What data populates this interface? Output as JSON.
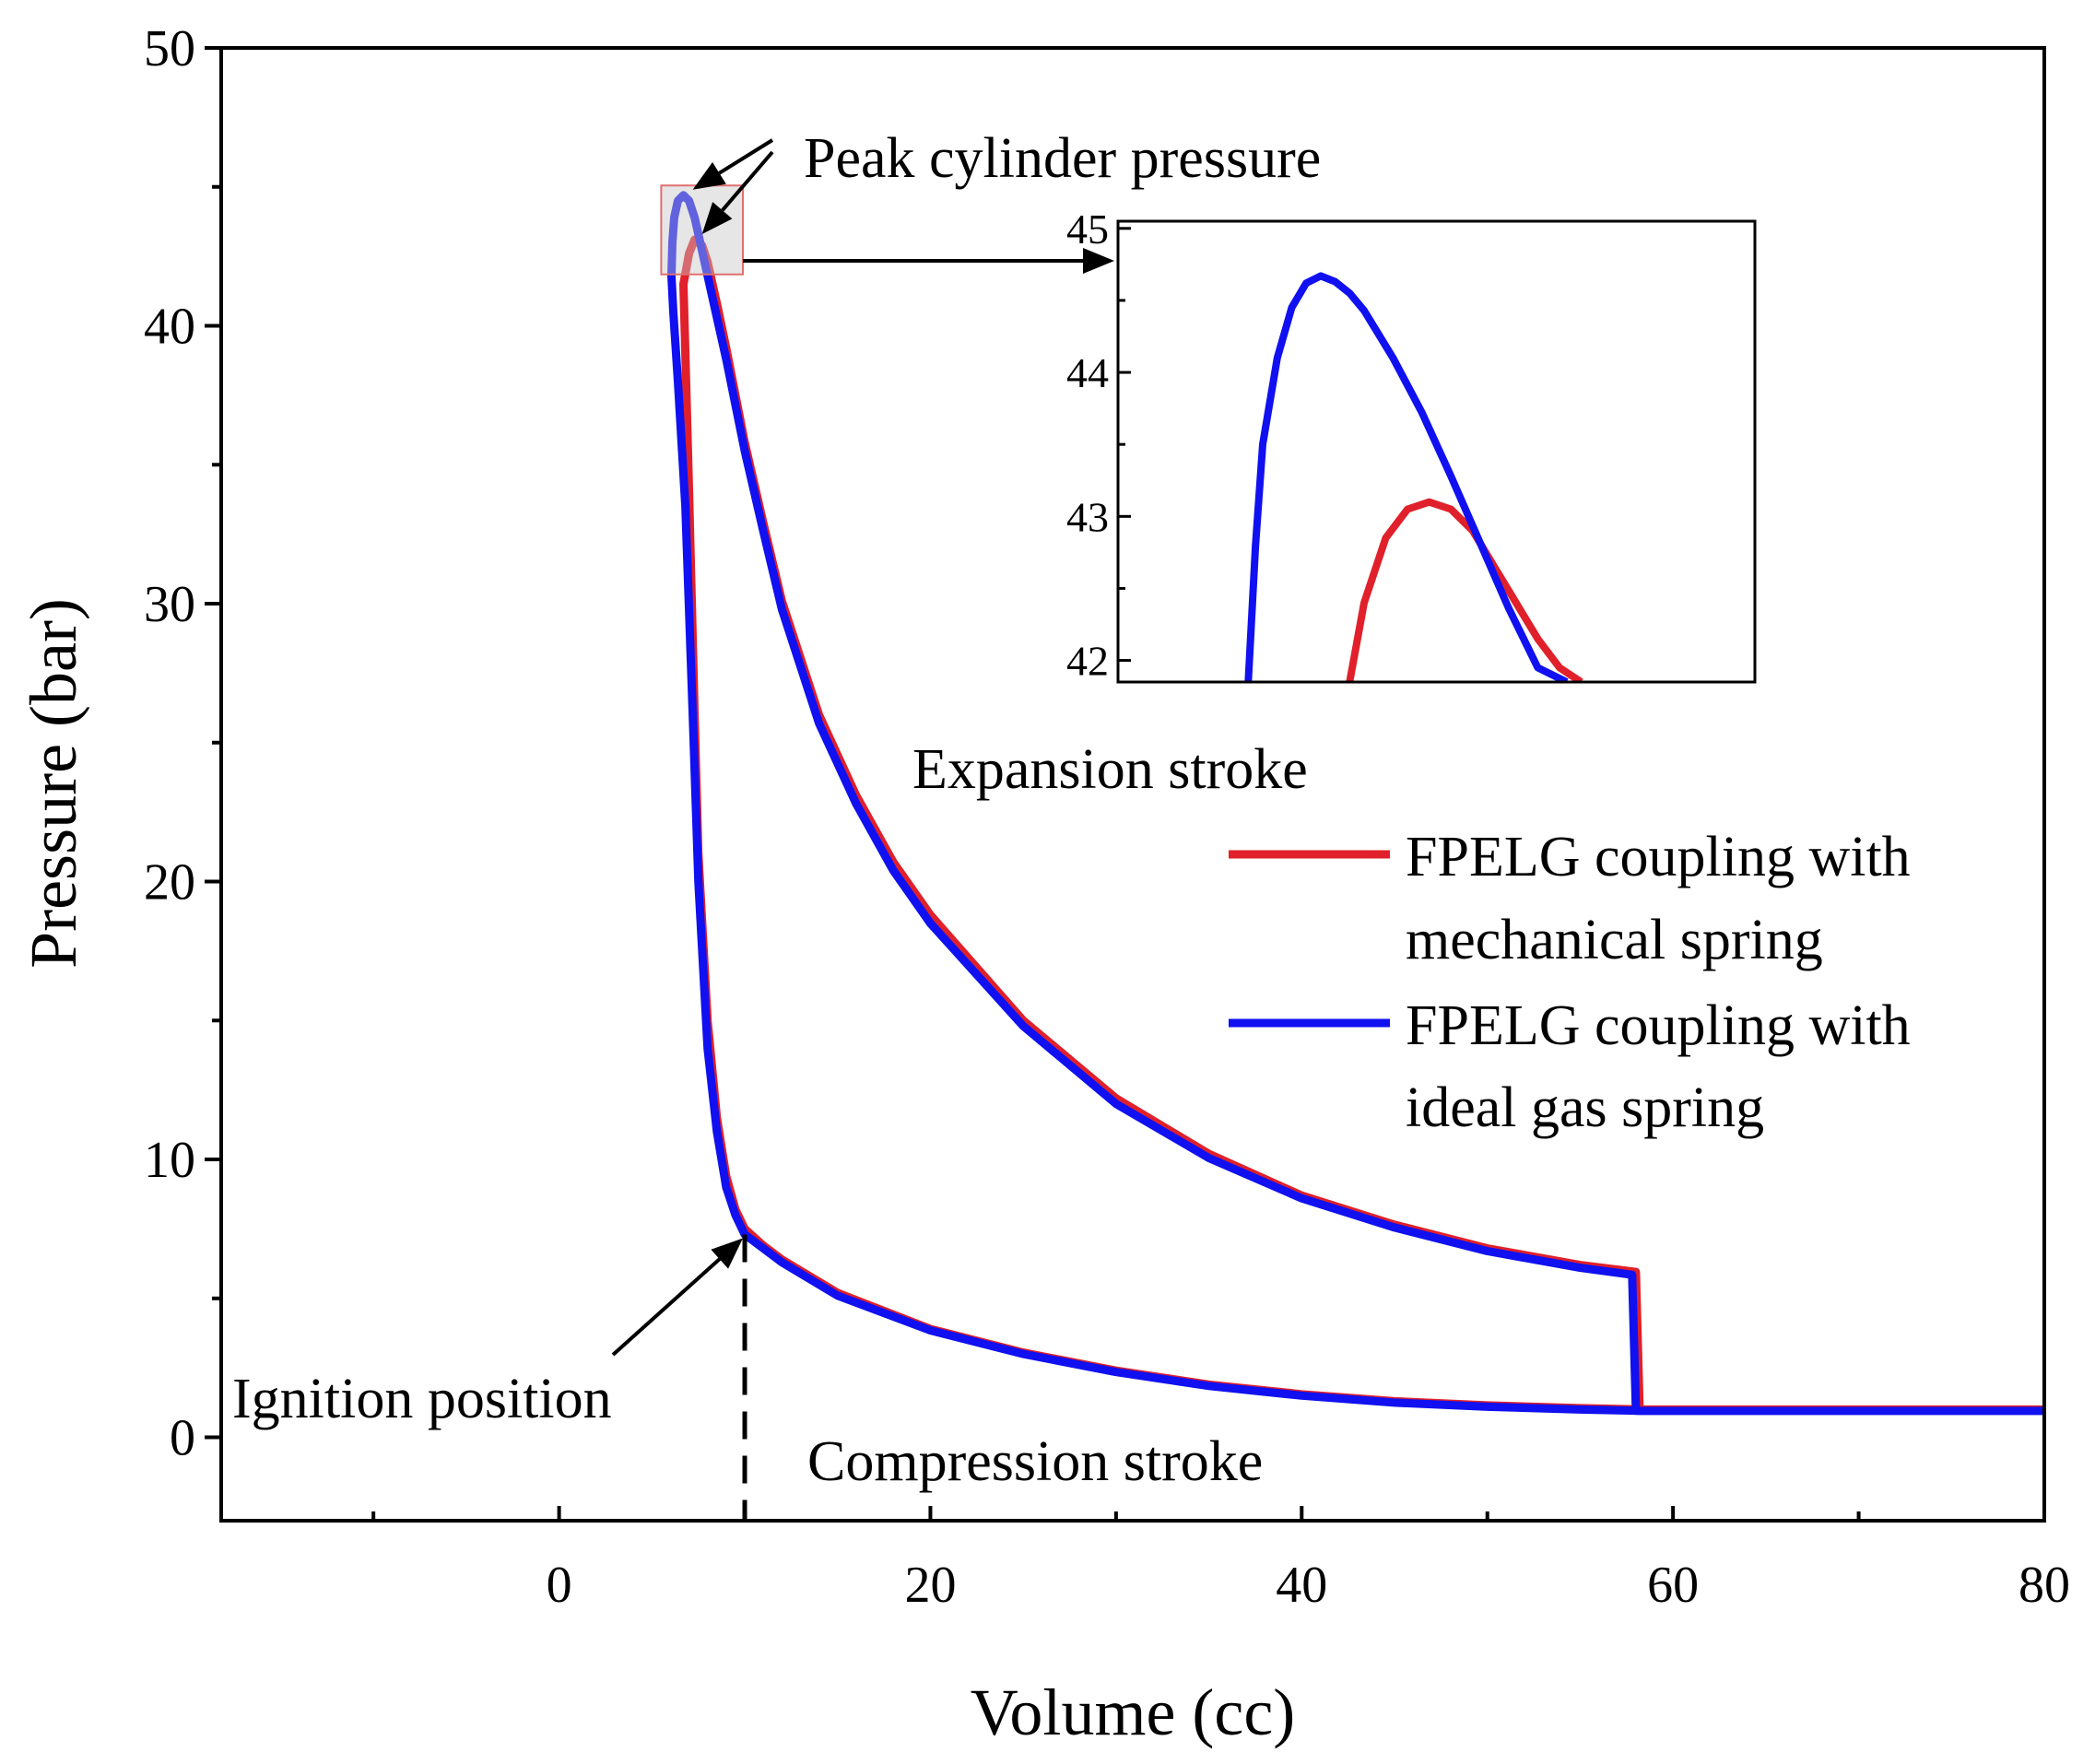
{
  "chart_data": {
    "type": "line",
    "title": "",
    "xlabel": "Volume (cc)",
    "ylabel": "Pressure (bar)",
    "xlim": [
      -18.2,
      80
    ],
    "ylim": [
      -3,
      50
    ],
    "xticks": [
      0,
      20,
      40,
      60,
      80
    ],
    "yticks": [
      0,
      10,
      20,
      30,
      40,
      50
    ],
    "grid": false,
    "legend_position": "right",
    "series": [
      {
        "name": "FPELG coupling with mechanical spring",
        "color": "#e0202a",
        "x": [
          58.5,
          55,
          50,
          45,
          40,
          35,
          30,
          25,
          20,
          15,
          12,
          11,
          10,
          9.5,
          9,
          8.5,
          8,
          7.5,
          7.3,
          7.0,
          6.8,
          6.7,
          7.0,
          7.3,
          7.7,
          8.0,
          8.5,
          9,
          10,
          11,
          12,
          14,
          16,
          18,
          20,
          25,
          30,
          35,
          40,
          45,
          50,
          55,
          58.0,
          58.2,
          58.5,
          80
        ],
        "y": [
          1.0,
          1.05,
          1.15,
          1.3,
          1.55,
          1.9,
          2.4,
          3.05,
          3.9,
          5.2,
          6.4,
          6.9,
          7.5,
          8.2,
          9.4,
          11.5,
          15.0,
          21.0,
          26.0,
          34.0,
          39.0,
          41.5,
          42.6,
          43.1,
          42.9,
          42.3,
          40.8,
          39.2,
          35.8,
          32.9,
          30.1,
          26.0,
          23.1,
          20.7,
          18.8,
          15.0,
          12.2,
          10.2,
          8.7,
          7.65,
          6.8,
          6.2,
          5.95,
          1.0,
          1.0,
          1.0
        ]
      },
      {
        "name": "FPELG coupling with ideal gas spring",
        "color": "#1010f0",
        "x": [
          58.5,
          55,
          50,
          45,
          40,
          35,
          30,
          25,
          20,
          15,
          12,
          11,
          10,
          9.5,
          9,
          8.5,
          8,
          7.5,
          7.2,
          6.8,
          6.4,
          6.15,
          6.05,
          6.1,
          6.2,
          6.4,
          6.7,
          7.0,
          7.3,
          7.6,
          8.0,
          8.5,
          9,
          10,
          11,
          12,
          14,
          16,
          18,
          20,
          25,
          30,
          35,
          40,
          45,
          50,
          55,
          57.8,
          58.0,
          58.4,
          80
        ],
        "y": [
          0.95,
          1.0,
          1.1,
          1.25,
          1.5,
          1.85,
          2.35,
          3.0,
          3.85,
          5.1,
          6.3,
          6.8,
          7.3,
          8.0,
          9.0,
          11.0,
          14.0,
          20.0,
          26.0,
          33.5,
          38.0,
          40.5,
          41.8,
          43.0,
          43.9,
          44.5,
          44.7,
          44.5,
          43.9,
          43.0,
          41.8,
          40.3,
          38.8,
          35.5,
          32.6,
          29.8,
          25.7,
          22.8,
          20.4,
          18.5,
          14.8,
          12.0,
          10.05,
          8.6,
          7.55,
          6.7,
          6.1,
          5.85,
          0.95,
          0.95,
          0.95
        ]
      }
    ],
    "inset": {
      "xlim": [
        5.5,
        9.9
      ],
      "ylim": [
        41.85,
        45.05
      ],
      "yticks": [
        42,
        43,
        44,
        45
      ],
      "series": [
        {
          "name": "FPELG coupling with mechanical spring",
          "color": "#e0202a",
          "x": [
            7.1,
            7.2,
            7.35,
            7.5,
            7.65,
            7.8,
            7.95,
            8.1,
            8.25,
            8.4,
            8.55,
            8.7
          ],
          "y": [
            41.85,
            42.4,
            42.85,
            43.05,
            43.1,
            43.05,
            42.9,
            42.65,
            42.4,
            42.15,
            41.95,
            41.85
          ]
        },
        {
          "name": "FPELG coupling with ideal gas spring",
          "color": "#1010f0",
          "x": [
            6.4,
            6.45,
            6.5,
            6.6,
            6.7,
            6.8,
            6.9,
            7.0,
            7.1,
            7.2,
            7.4,
            7.6,
            7.8,
            8.0,
            8.2,
            8.4,
            8.6
          ],
          "y": [
            41.85,
            42.8,
            43.5,
            44.1,
            44.45,
            44.62,
            44.67,
            44.63,
            44.55,
            44.43,
            44.1,
            43.72,
            43.28,
            42.82,
            42.36,
            41.95,
            41.85
          ]
        }
      ]
    },
    "annotations": [
      {
        "text": "Peak cylinder pressure",
        "points_to": [
          [
            6.9,
            44.7
          ],
          [
            7.4,
            43.1
          ]
        ]
      },
      {
        "text": "Expansion stroke"
      },
      {
        "text": "Compression stroke"
      },
      {
        "text": "Ignition position",
        "points_to": [
          [
            10,
            7.3
          ]
        ]
      }
    ],
    "ignition_volume": 10
  }
}
